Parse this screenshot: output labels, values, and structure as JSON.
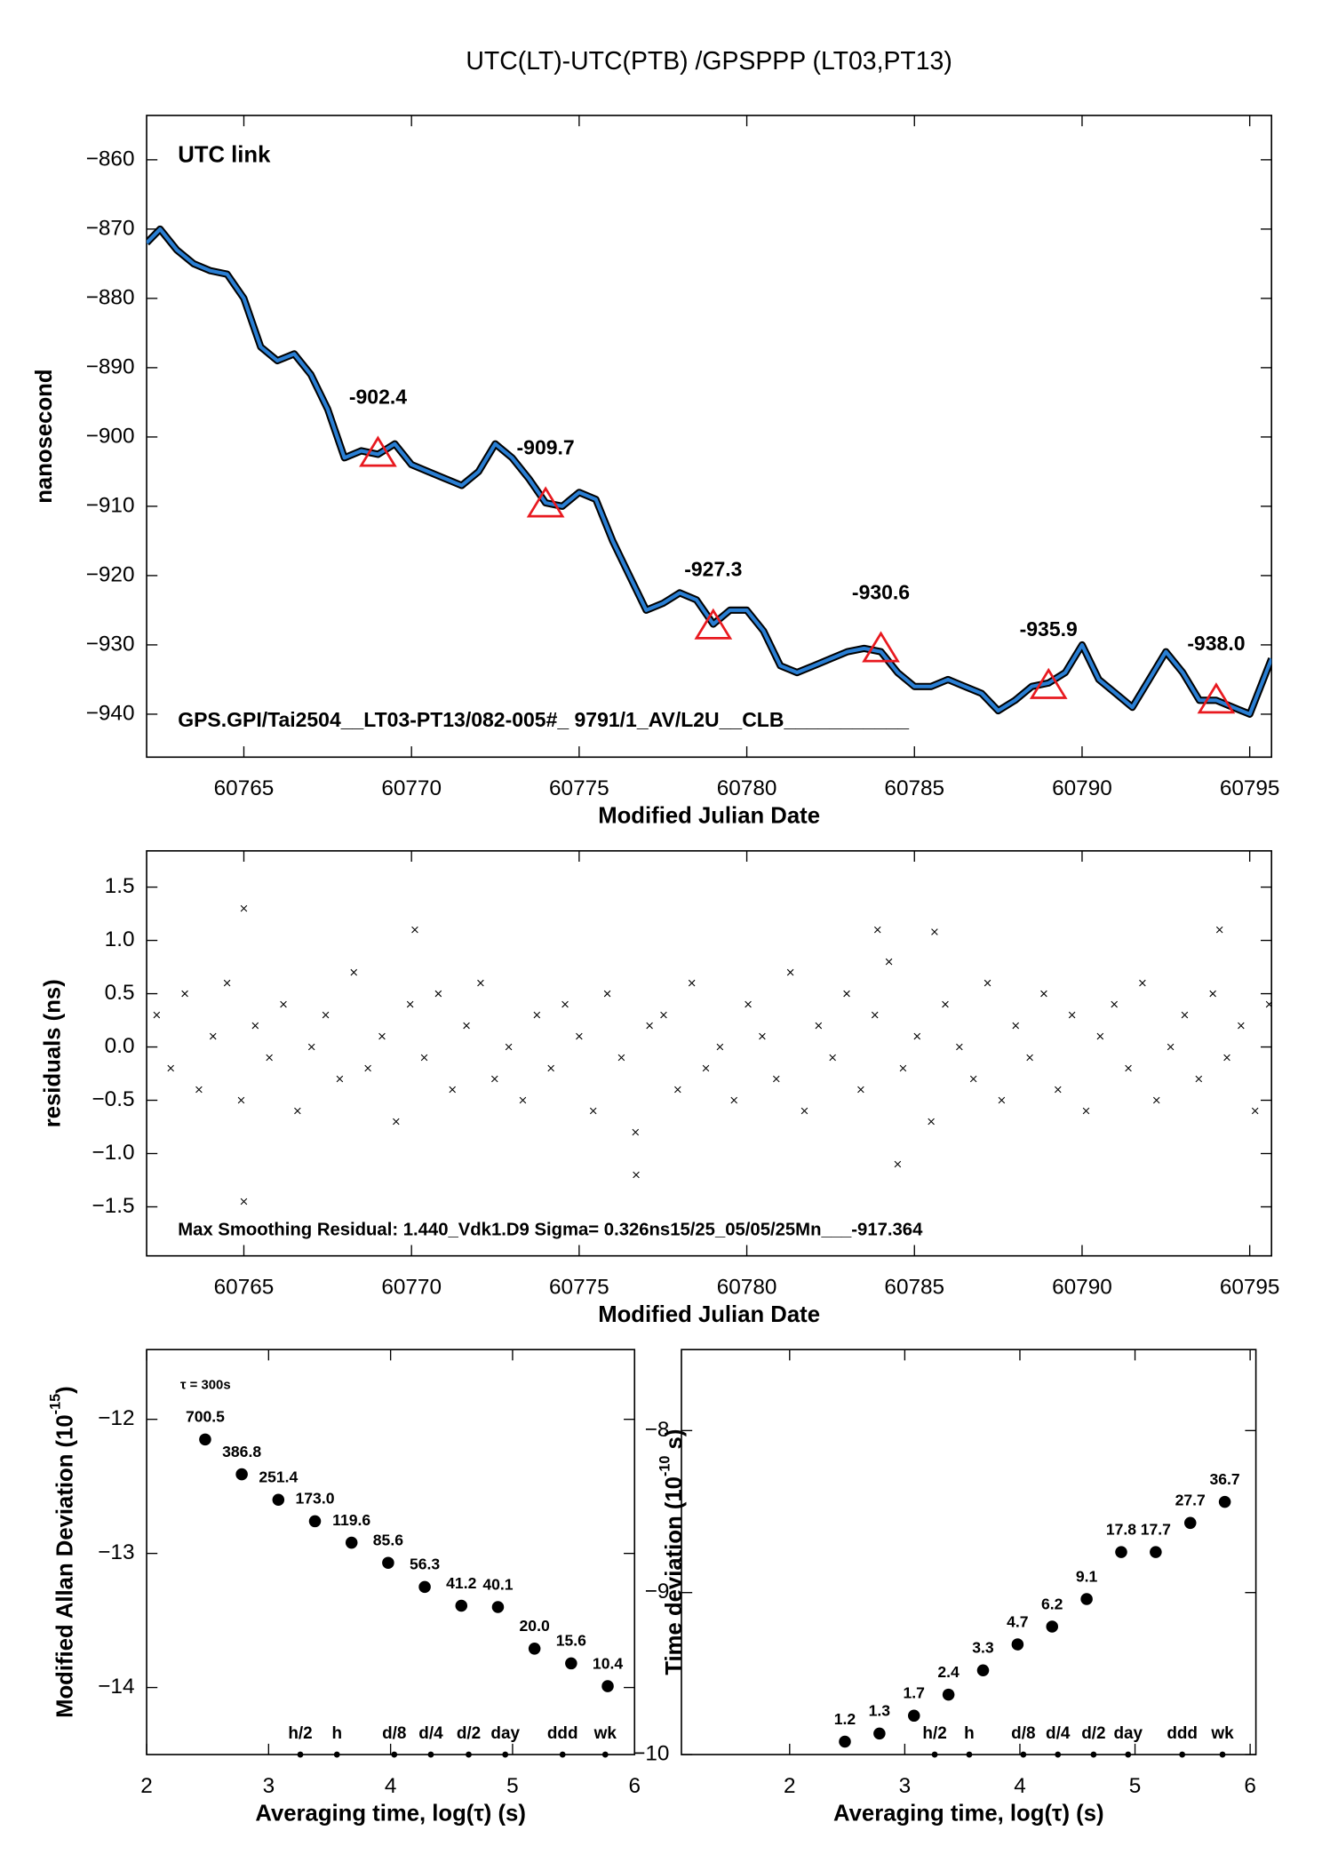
{
  "chart_data": [
    {
      "type": "line",
      "title": "UTC(LT)-UTC(PTB)  /GPSPPP  (LT03,PT13)",
      "ylabel": "nanosecond",
      "xlabel": "Modified Julian Date",
      "annotation": "UTC link",
      "footnote": "GPS.GPI/Tai2504__LT03-PT13/082-005#_  9791/1_AV/L2U__CLB___________",
      "xlim": [
        60762.1,
        60795.65
      ],
      "ylim": [
        -946.2,
        -853.6
      ],
      "xticks": [
        60765,
        60770,
        60775,
        60780,
        60785,
        60790,
        60795
      ],
      "yticks": [
        {
          "value": -940,
          "label": "−940"
        },
        {
          "value": -930,
          "label": "−930"
        },
        {
          "value": -920,
          "label": "−920"
        },
        {
          "value": -910,
          "label": "−910"
        },
        {
          "value": -900,
          "label": "−900"
        },
        {
          "value": -890,
          "label": "−890"
        },
        {
          "value": -880,
          "label": "−880"
        },
        {
          "value": -870,
          "label": "−870"
        },
        {
          "value": -860,
          "label": "−860"
        }
      ],
      "series": [
        {
          "color": "#2a7fd4",
          "outline_color": "#000000",
          "x": [
            60762.1,
            60762.5,
            60763,
            60763.5,
            60764,
            60764.5,
            60765,
            60765.5,
            60766,
            60766.5,
            60767,
            60767.5,
            60768,
            60768.5,
            60769,
            60769.5,
            60770,
            60770.5,
            60771,
            60771.5,
            60772,
            60772.5,
            60773,
            60773.5,
            60774,
            60774.5,
            60775,
            60775.5,
            60776,
            60776.5,
            60777,
            60777.5,
            60778,
            60778.5,
            60779,
            60779.5,
            60780,
            60780.5,
            60781,
            60781.5,
            60782,
            60782.5,
            60783,
            60783.5,
            60784,
            60784.5,
            60785,
            60785.5,
            60786,
            60786.5,
            60787,
            60787.5,
            60788,
            60788.5,
            60789,
            60789.5,
            60790,
            60790.5,
            60791,
            60791.5,
            60792,
            60792.5,
            60793,
            60793.5,
            60794,
            60794.5,
            60795,
            60795.65
          ],
          "values": [
            -872,
            -870,
            -873,
            -875,
            -876,
            -876.5,
            -880,
            -887,
            -889,
            -888,
            -891,
            -896,
            -903,
            -902,
            -902.5,
            -901,
            -904,
            -905,
            -906,
            -907,
            -905,
            -901,
            -903,
            -906,
            -909.5,
            -910,
            -908,
            -909,
            -915,
            -920,
            -925,
            -924,
            -922.5,
            -923.5,
            -927,
            -925,
            -925,
            -928,
            -933,
            -934,
            -933,
            -932,
            -931,
            -930.5,
            -931,
            -934,
            -936,
            -936,
            -935,
            -936,
            -937,
            -939.5,
            -938,
            -936,
            -935.5,
            -934,
            -930,
            -935,
            -937,
            -939,
            -935,
            -931,
            -934,
            -938,
            -938,
            -939,
            -940,
            -932
          ]
        }
      ],
      "markers": {
        "color": "#e8191f",
        "x": [
          60769,
          60774,
          60779,
          60784,
          60789,
          60794
        ],
        "values": [
          -902.4,
          -909.7,
          -927.3,
          -930.6,
          -935.9,
          -938.0
        ],
        "value_labels": [
          "-902.4",
          "-909.7",
          "-927.3",
          "-930.6",
          "-935.9",
          "-938.0"
        ]
      }
    },
    {
      "type": "scatter",
      "marker": "x",
      "color": "#000000",
      "ylabel": "residuals (ns)",
      "xlabel": "Modified Julian Date",
      "annotation": "Max Smoothing Residual: 1.440_Vdk1.D9  Sigma= 0.326ns15/25_05/05/25Mn___-917.364",
      "xlim": [
        60762.1,
        60795.65
      ],
      "ylim": [
        -1.96,
        1.84
      ],
      "xticks": [
        60765,
        60770,
        60775,
        60780,
        60785,
        60790,
        60795
      ],
      "yticks": [
        {
          "value": -1.5,
          "label": "−1.5"
        },
        {
          "value": -1,
          "label": "−1.0"
        },
        {
          "value": -0.5,
          "label": "−0.5"
        },
        {
          "value": 0,
          "label": "0.0"
        },
        0.5,
        {
          "value": 1,
          "label": "1.0"
        },
        1.5
      ],
      "x": [
        60762.4,
        60762.82,
        60763.24,
        60763.66,
        60764.08,
        60764.5,
        60764.92,
        60765.34,
        60765.76,
        60766.18,
        60766.6,
        60767.02,
        60767.44,
        60767.86,
        60768.28,
        60768.7,
        60769.12,
        60769.54,
        60769.96,
        60770.38,
        60770.8,
        60771.22,
        60771.64,
        60772.06,
        60772.48,
        60772.9,
        60773.32,
        60773.74,
        60774.16,
        60774.58,
        60775.0,
        60775.42,
        60775.84,
        60776.26,
        60776.68,
        60777.1,
        60777.52,
        60777.94,
        60778.36,
        60778.78,
        60779.2,
        60779.62,
        60780.04,
        60780.46,
        60780.88,
        60781.3,
        60781.72,
        60782.14,
        60782.56,
        60782.98,
        60783.4,
        60783.82,
        60784.24,
        60784.66,
        60785.08,
        60785.5,
        60785.92,
        60786.34,
        60786.76,
        60787.18,
        60787.6,
        60788.02,
        60788.44,
        60788.86,
        60789.28,
        60789.7,
        60790.12,
        60790.54,
        60790.96,
        60791.38,
        60791.8,
        60792.22,
        60792.64,
        60793.06,
        60793.48,
        60793.9,
        60794.32,
        60794.74,
        60795.16,
        60795.58,
        60765.0,
        60765.0,
        60770.1,
        60776.7,
        60783.9,
        60785.6,
        60784.5,
        60794.1
      ],
      "values": [
        0.3,
        -0.2,
        0.5,
        -0.4,
        0.1,
        0.6,
        -0.5,
        0.2,
        -0.1,
        0.4,
        -0.6,
        0.0,
        0.3,
        -0.3,
        0.7,
        -0.2,
        0.1,
        -0.7,
        0.4,
        -0.1,
        0.5,
        -0.4,
        0.2,
        0.6,
        -0.3,
        0.0,
        -0.5,
        0.3,
        -0.2,
        0.4,
        0.1,
        -0.6,
        0.5,
        -0.1,
        -0.8,
        0.2,
        0.3,
        -0.4,
        0.6,
        -0.2,
        0.0,
        -0.5,
        0.4,
        0.1,
        -0.3,
        0.7,
        -0.6,
        0.2,
        -0.1,
        0.5,
        -0.4,
        0.3,
        0.8,
        -0.2,
        0.1,
        -0.7,
        0.4,
        0.0,
        -0.3,
        0.6,
        -0.5,
        0.2,
        -0.1,
        0.5,
        -0.4,
        0.3,
        -0.6,
        0.1,
        0.4,
        -0.2,
        0.6,
        -0.5,
        0.0,
        0.3,
        -0.3,
        0.5,
        -0.1,
        0.2,
        -0.6,
        0.4,
        1.3,
        -1.45,
        1.1,
        -1.2,
        1.1,
        1.08,
        -1.1,
        1.1
      ]
    },
    {
      "type": "scatter",
      "marker": "circle",
      "color": "#000000",
      "label_color": "#e8191f",
      "ylabel": "Modified Allan Deviation (10",
      "ylabel_exp": "-15",
      "ylabel_end": ")",
      "xlabel": "Averaging time, log(τ) (s)",
      "annotation": "τ = 300s",
      "xlim": [
        2,
        6
      ],
      "ylim": [
        -14.5,
        -11.48
      ],
      "xticks": [
        2,
        3,
        4,
        5,
        6
      ],
      "yticks": [
        {
          "value": -14,
          "label": "−14"
        },
        {
          "value": -13,
          "label": "−13"
        },
        {
          "value": -12,
          "label": "−12"
        }
      ],
      "x": [
        2.48,
        2.78,
        3.08,
        3.38,
        3.68,
        3.98,
        4.28,
        4.58,
        4.88,
        5.18,
        5.48,
        5.78
      ],
      "values": [
        -12.15,
        -12.41,
        -12.6,
        -12.76,
        -12.92,
        -13.07,
        -13.25,
        -13.39,
        -13.4,
        -13.71,
        -13.82,
        -13.99
      ],
      "point_labels": [
        "700.5",
        "386.8",
        "251.4",
        "173.0",
        "119.6",
        "85.6",
        "56.3",
        "41.2",
        "40.1",
        "20.0",
        "15.6",
        "10.4"
      ],
      "reference_marks": {
        "x": [
          3.26,
          3.56,
          4.03,
          4.33,
          4.64,
          4.94,
          5.41,
          5.76
        ],
        "labels": [
          "h/2",
          "h",
          "d/8",
          "d/4",
          "d/2",
          "day",
          "ddd",
          "wk"
        ]
      }
    },
    {
      "type": "scatter",
      "marker": "circle",
      "color": "#000000",
      "label_color": "#e8191f",
      "ylabel": "Time deviation (10",
      "ylabel_exp": "-10",
      "ylabel_end": " s)",
      "xlabel": "Averaging time, log(τ) (s)",
      "xlim": [
        1.06,
        6.05
      ],
      "ylim": [
        -10,
        -7.5
      ],
      "xticks": [
        2,
        3,
        4,
        5,
        6
      ],
      "yticks": [
        {
          "value": -10,
          "label": "−10"
        },
        {
          "value": -9,
          "label": "−9"
        },
        {
          "value": -8,
          "label": "−8"
        }
      ],
      "x": [
        2.48,
        2.78,
        3.08,
        3.38,
        3.68,
        3.98,
        4.28,
        4.58,
        4.88,
        5.18,
        5.48,
        5.78
      ],
      "values": [
        -9.92,
        -9.87,
        -9.76,
        -9.63,
        -9.48,
        -9.32,
        -9.21,
        -9.04,
        -8.75,
        -8.75,
        -8.57,
        -8.44
      ],
      "point_labels": [
        "1.2",
        "1.3",
        "1.7",
        "2.4",
        "3.3",
        "4.7",
        "6.2",
        "9.1",
        "17.8",
        "17.7",
        "27.7",
        "36.7"
      ],
      "reference_marks": {
        "x": [
          3.26,
          3.56,
          4.03,
          4.33,
          4.64,
          4.94,
          5.41,
          5.76
        ],
        "labels": [
          "h/2",
          "h",
          "d/8",
          "d/4",
          "d/2",
          "day",
          "ddd",
          "wk"
        ]
      }
    }
  ]
}
